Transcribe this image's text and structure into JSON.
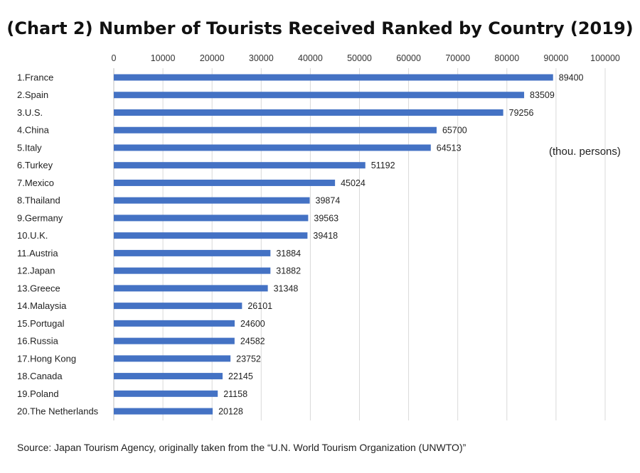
{
  "chart_data": {
    "type": "bar",
    "orientation": "horizontal",
    "title": "(Chart 2) Number of Tourists Received Ranked by Country (2019)",
    "unit": "(thou. persons)",
    "source": "Source: Japan Tourism Agency, originally taken from the “U.N. World Tourism Organization (UNWTO)”",
    "xlim": [
      0,
      100000
    ],
    "x_ticks": [
      0,
      10000,
      20000,
      30000,
      40000,
      50000,
      60000,
      70000,
      80000,
      90000,
      100000
    ],
    "x_tick_labels": [
      "0",
      "10000",
      "20000",
      "30000",
      "40000",
      "50000",
      "60000",
      "70000",
      "80000",
      "90000",
      "100000"
    ],
    "axis_position": "top",
    "grid": true,
    "bar_color": "#4472C4",
    "categories": [
      "1.France",
      "2.Spain",
      "3.U.S.",
      "4.China",
      "5.Italy",
      "6.Turkey",
      "7.Mexico",
      "8.Thailand",
      "9.Germany",
      "10.U.K.",
      "11.Austria",
      "12.Japan",
      "13.Greece",
      "14.Malaysia",
      "15.Portugal",
      "16.Russia",
      "17.Hong Kong",
      "18.Canada",
      "19.Poland",
      "20.The Netherlands"
    ],
    "values": [
      89400,
      83509,
      79256,
      65700,
      64513,
      51192,
      45024,
      39874,
      39563,
      39418,
      31884,
      31882,
      31348,
      26101,
      24600,
      24582,
      23752,
      22145,
      21158,
      20128
    ],
    "value_labels": [
      "89400",
      "83509",
      "79256",
      "65700",
      "64513",
      "51192",
      "45024",
      "39874",
      "39563",
      "39418",
      "31884",
      "31882",
      "31348",
      "26101",
      "24600",
      "24582",
      "23752",
      "22145",
      "21158",
      "20128"
    ]
  }
}
